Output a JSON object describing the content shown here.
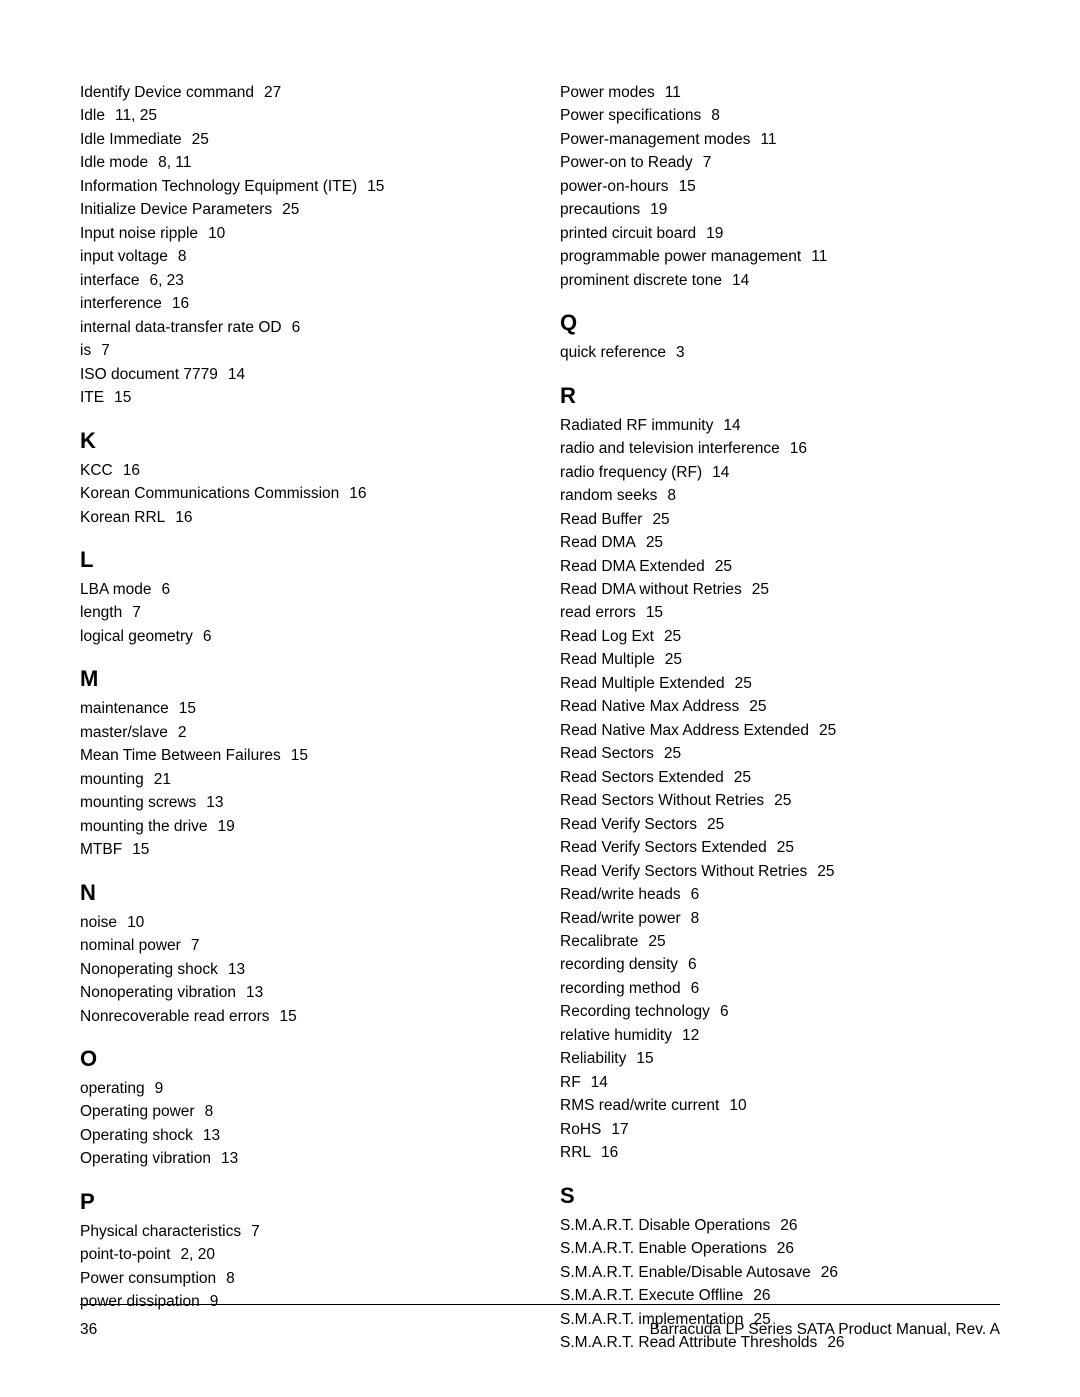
{
  "footer": {
    "page_number": "36",
    "title": "Barracuda LP Series SATA Product Manual, Rev. A"
  },
  "left_column": [
    {
      "type": "entries",
      "items": [
        {
          "term": "Identify Device command",
          "pages": "27"
        },
        {
          "term": "Idle",
          "pages": "11,  25"
        },
        {
          "term": "Idle Immediate",
          "pages": "25"
        },
        {
          "term": "Idle mode",
          "pages": "8,  11"
        },
        {
          "term": "Information Technology Equipment (ITE)",
          "pages": "15"
        },
        {
          "term": "Initialize Device Parameters",
          "pages": "25"
        },
        {
          "term": "Input noise ripple",
          "pages": "10"
        },
        {
          "term": "input voltage",
          "pages": "8"
        },
        {
          "term": "interface",
          "pages": "6,  23"
        },
        {
          "term": "interference",
          "pages": "16"
        },
        {
          "term": "internal data-transfer rate OD",
          "pages": "6"
        },
        {
          "term": "is",
          "pages": "7"
        },
        {
          "term": "ISO document 7779",
          "pages": "14"
        },
        {
          "term": "ITE",
          "pages": "15"
        }
      ]
    },
    {
      "type": "letter",
      "text": "K"
    },
    {
      "type": "entries",
      "items": [
        {
          "term": "KCC",
          "pages": "16"
        },
        {
          "term": "Korean Communications Commission",
          "pages": "16"
        },
        {
          "term": "Korean RRL",
          "pages": "16"
        }
      ]
    },
    {
      "type": "letter",
      "text": "L"
    },
    {
      "type": "entries",
      "items": [
        {
          "term": "LBA mode",
          "pages": "6"
        },
        {
          "term": "length",
          "pages": "7"
        },
        {
          "term": "logical geometry",
          "pages": "6"
        }
      ]
    },
    {
      "type": "letter",
      "text": "M"
    },
    {
      "type": "entries",
      "items": [
        {
          "term": "maintenance",
          "pages": "15"
        },
        {
          "term": "master/slave",
          "pages": "2"
        },
        {
          "term": "Mean Time Between Failures",
          "pages": "15"
        },
        {
          "term": "mounting",
          "pages": "21"
        },
        {
          "term": "mounting screws",
          "pages": "13"
        },
        {
          "term": "mounting the drive",
          "pages": "19"
        },
        {
          "term": "MTBF",
          "pages": "15"
        }
      ]
    },
    {
      "type": "letter",
      "text": "N"
    },
    {
      "type": "entries",
      "items": [
        {
          "term": "noise",
          "pages": "10"
        },
        {
          "term": "nominal power",
          "pages": "7"
        },
        {
          "term": "Nonoperating shock",
          "pages": "13"
        },
        {
          "term": "Nonoperating vibration",
          "pages": "13"
        },
        {
          "term": "Nonrecoverable read errors",
          "pages": "15"
        }
      ]
    },
    {
      "type": "letter",
      "text": "O"
    },
    {
      "type": "entries",
      "items": [
        {
          "term": "operating",
          "pages": "9"
        },
        {
          "term": "Operating power",
          "pages": "8"
        },
        {
          "term": "Operating shock",
          "pages": "13"
        },
        {
          "term": "Operating vibration",
          "pages": "13"
        }
      ]
    },
    {
      "type": "letter",
      "text": "P"
    },
    {
      "type": "entries",
      "items": [
        {
          "term": "Physical characteristics",
          "pages": "7"
        },
        {
          "term": "point-to-point",
          "pages": "2,  20"
        },
        {
          "term": "Power consumption",
          "pages": "8"
        },
        {
          "term": "power dissipation",
          "pages": "9"
        }
      ]
    }
  ],
  "right_column": [
    {
      "type": "entries",
      "items": [
        {
          "term": "Power modes",
          "pages": "11"
        },
        {
          "term": "Power specifications",
          "pages": "8"
        },
        {
          "term": "Power-management modes",
          "pages": "11"
        },
        {
          "term": "Power-on to Ready",
          "pages": "7"
        },
        {
          "term": "power-on-hours",
          "pages": "15"
        },
        {
          "term": "precautions",
          "pages": "19"
        },
        {
          "term": "printed circuit board",
          "pages": "19"
        },
        {
          "term": "programmable power management",
          "pages": "11"
        },
        {
          "term": "prominent discrete tone",
          "pages": "14"
        }
      ]
    },
    {
      "type": "letter",
      "text": "Q"
    },
    {
      "type": "entries",
      "items": [
        {
          "term": "quick reference",
          "pages": "3"
        }
      ]
    },
    {
      "type": "letter",
      "text": "R"
    },
    {
      "type": "entries",
      "items": [
        {
          "term": "Radiated RF immunity",
          "pages": "14"
        },
        {
          "term": "radio and television interference",
          "pages": "16"
        },
        {
          "term": "radio frequency (RF)",
          "pages": "14"
        },
        {
          "term": "random seeks",
          "pages": "8"
        },
        {
          "term": "Read Buffer",
          "pages": "25"
        },
        {
          "term": "Read DMA",
          "pages": "25"
        },
        {
          "term": "Read DMA Extended",
          "pages": "25"
        },
        {
          "term": "Read DMA without Retries",
          "pages": "25"
        },
        {
          "term": "read errors",
          "pages": "15"
        },
        {
          "term": "Read Log Ext",
          "pages": "25"
        },
        {
          "term": "Read Multiple",
          "pages": "25"
        },
        {
          "term": "Read Multiple Extended",
          "pages": "25"
        },
        {
          "term": "Read Native Max Address",
          "pages": "25"
        },
        {
          "term": "Read Native Max Address Extended",
          "pages": "25"
        },
        {
          "term": "Read Sectors",
          "pages": "25"
        },
        {
          "term": "Read Sectors Extended",
          "pages": "25"
        },
        {
          "term": "Read Sectors Without Retries",
          "pages": "25"
        },
        {
          "term": "Read Verify Sectors",
          "pages": "25"
        },
        {
          "term": "Read Verify Sectors Extended",
          "pages": "25"
        },
        {
          "term": "Read Verify Sectors Without Retries",
          "pages": "25"
        },
        {
          "term": "Read/write heads",
          "pages": "6"
        },
        {
          "term": "Read/write power",
          "pages": "8"
        },
        {
          "term": "Recalibrate",
          "pages": "25"
        },
        {
          "term": "recording density",
          "pages": "6"
        },
        {
          "term": "recording method",
          "pages": "6"
        },
        {
          "term": "Recording technology",
          "pages": "6"
        },
        {
          "term": "relative humidity",
          "pages": "12"
        },
        {
          "term": "Reliability",
          "pages": "15"
        },
        {
          "term": "RF",
          "pages": "14"
        },
        {
          "term": "RMS read/write current",
          "pages": "10"
        },
        {
          "term": "RoHS",
          "pages": "17"
        },
        {
          "term": "RRL",
          "pages": "16"
        }
      ]
    },
    {
      "type": "letter",
      "text": "S"
    },
    {
      "type": "entries",
      "items": [
        {
          "term": "S.M.A.R.T. Disable Operations",
          "pages": "26"
        },
        {
          "term": "S.M.A.R.T. Enable Operations",
          "pages": "26"
        },
        {
          "term": "S.M.A.R.T. Enable/Disable Autosave",
          "pages": "26"
        },
        {
          "term": "S.M.A.R.T. Execute Offline",
          "pages": "26"
        },
        {
          "term": "S.M.A.R.T. implementation",
          "pages": "25"
        },
        {
          "term": "S.M.A.R.T. Read Attribute Thresholds",
          "pages": "26"
        }
      ]
    }
  ]
}
